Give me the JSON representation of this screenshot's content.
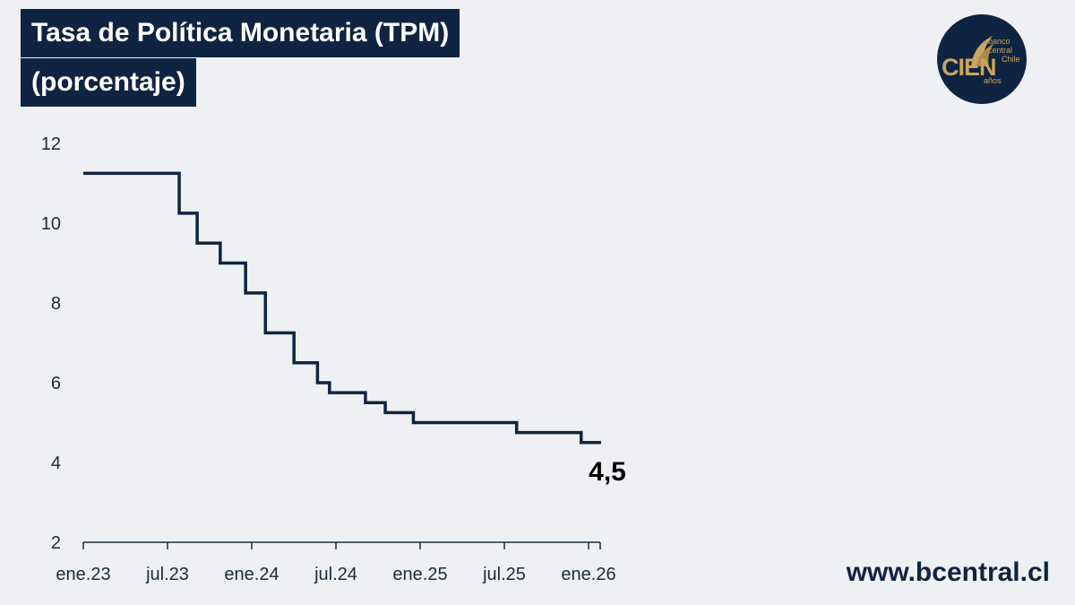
{
  "header": {
    "title": "Tasa de Política Monetaria (TPM)",
    "subtitle": "(porcentaje)"
  },
  "footer": {
    "url": "www.bcentral.cl"
  },
  "logo": {
    "main": "CIEN",
    "line1": "banco",
    "line2": "central",
    "line3": "Chile",
    "line4": "años"
  },
  "colors": {
    "background": "#eef0f3",
    "line": "#0f2440",
    "title_bg": "#0f2440",
    "accent_gold": "#c9a560"
  },
  "chart_data": {
    "type": "line",
    "step": true,
    "title": "Tasa de Política Monetaria (TPM)",
    "subtitle": "(porcentaje)",
    "xlabel": "",
    "ylabel": "",
    "x_ticks": [
      "ene.23",
      "jul.23",
      "ene.24",
      "jul.24",
      "ene.25",
      "jul.25",
      "ene.26"
    ],
    "y_ticks": [
      "2",
      "4",
      "6",
      "8",
      "10",
      "12"
    ],
    "xlim": [
      "2023-01-01",
      "2026-01-01"
    ],
    "ylim": [
      2,
      12
    ],
    "grid": false,
    "series": [
      {
        "x": [
          "2023-01-01",
          "2023-07-28",
          "2023-09-05",
          "2023-10-25",
          "2023-12-19",
          "2024-01-31",
          "2024-04-02",
          "2024-05-23",
          "2024-06-18",
          "2024-09-04",
          "2024-10-17",
          "2024-12-17",
          "2025-07-29",
          "2025-12-16",
          "2026-01-01"
        ],
        "values": [
          11.25,
          10.25,
          9.5,
          9.0,
          8.25,
          7.25,
          6.5,
          6.0,
          5.75,
          5.5,
          5.25,
          5.0,
          4.75,
          4.5,
          4.5
        ]
      }
    ],
    "annotations": [
      {
        "text": "4,5",
        "x": "2026-01-01",
        "y": 4.5
      }
    ]
  }
}
